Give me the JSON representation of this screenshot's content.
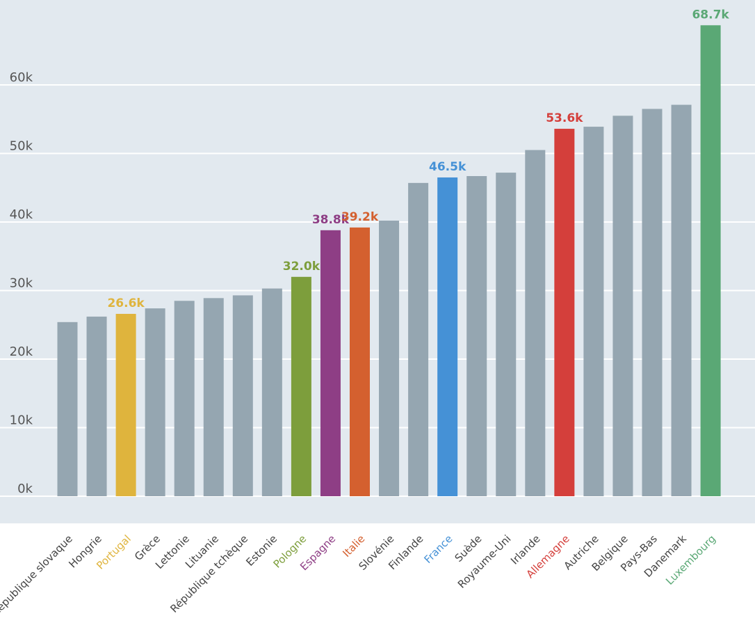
{
  "chart_data": {
    "type": "bar",
    "title": "",
    "xlabel": "",
    "ylabel": "",
    "ylim": [
      0,
      70000
    ],
    "yticks": [
      {
        "value": 0,
        "label": "0k"
      },
      {
        "value": 10000,
        "label": "10k"
      },
      {
        "value": 20000,
        "label": "20k"
      },
      {
        "value": 30000,
        "label": "30k"
      },
      {
        "value": 40000,
        "label": "40k"
      },
      {
        "value": 50000,
        "label": "50k"
      },
      {
        "value": 60000,
        "label": "60k"
      }
    ],
    "grid": true,
    "legend": "none",
    "colors": {
      "default": "#95a6b1",
      "background": "#e2e9ef",
      "gridline": "#ffffff"
    },
    "bars": [
      {
        "category": "République slovaque",
        "value": 25400
      },
      {
        "category": "Hongrie",
        "value": 26200
      },
      {
        "category": "Portugal",
        "value": 26600,
        "label": "26.6k",
        "color": "#dfb43d"
      },
      {
        "category": "Grèce",
        "value": 27400
      },
      {
        "category": "Lettonie",
        "value": 28500
      },
      {
        "category": "Lituanie",
        "value": 28900
      },
      {
        "category": "République tchèque",
        "value": 29300
      },
      {
        "category": "Estonie",
        "value": 30300
      },
      {
        "category": "Pologne",
        "value": 32000,
        "label": "32.0k",
        "color": "#7d9e3c"
      },
      {
        "category": "Espagne",
        "value": 38800,
        "label": "38.8k",
        "color": "#8e3e85"
      },
      {
        "category": "Italie",
        "value": 39200,
        "label": "39.2k",
        "color": "#d4602f"
      },
      {
        "category": "Slovénie",
        "value": 40200
      },
      {
        "category": "Finlande",
        "value": 45700
      },
      {
        "category": "France",
        "value": 46500,
        "label": "46.5k",
        "color": "#4591d6"
      },
      {
        "category": "Suède",
        "value": 46700
      },
      {
        "category": "Royaume-Uni",
        "value": 47200
      },
      {
        "category": "Irlande",
        "value": 50500
      },
      {
        "category": "Allemagne",
        "value": 53600,
        "label": "53.6k",
        "color": "#d43f3b"
      },
      {
        "category": "Autriche",
        "value": 53900
      },
      {
        "category": "Belgique",
        "value": 55500
      },
      {
        "category": "Pays-Bas",
        "value": 56500
      },
      {
        "category": "Danemark",
        "value": 57100
      },
      {
        "category": "Luxembourg",
        "value": 68700,
        "label": "68.7k",
        "color": "#5aa875"
      }
    ]
  }
}
